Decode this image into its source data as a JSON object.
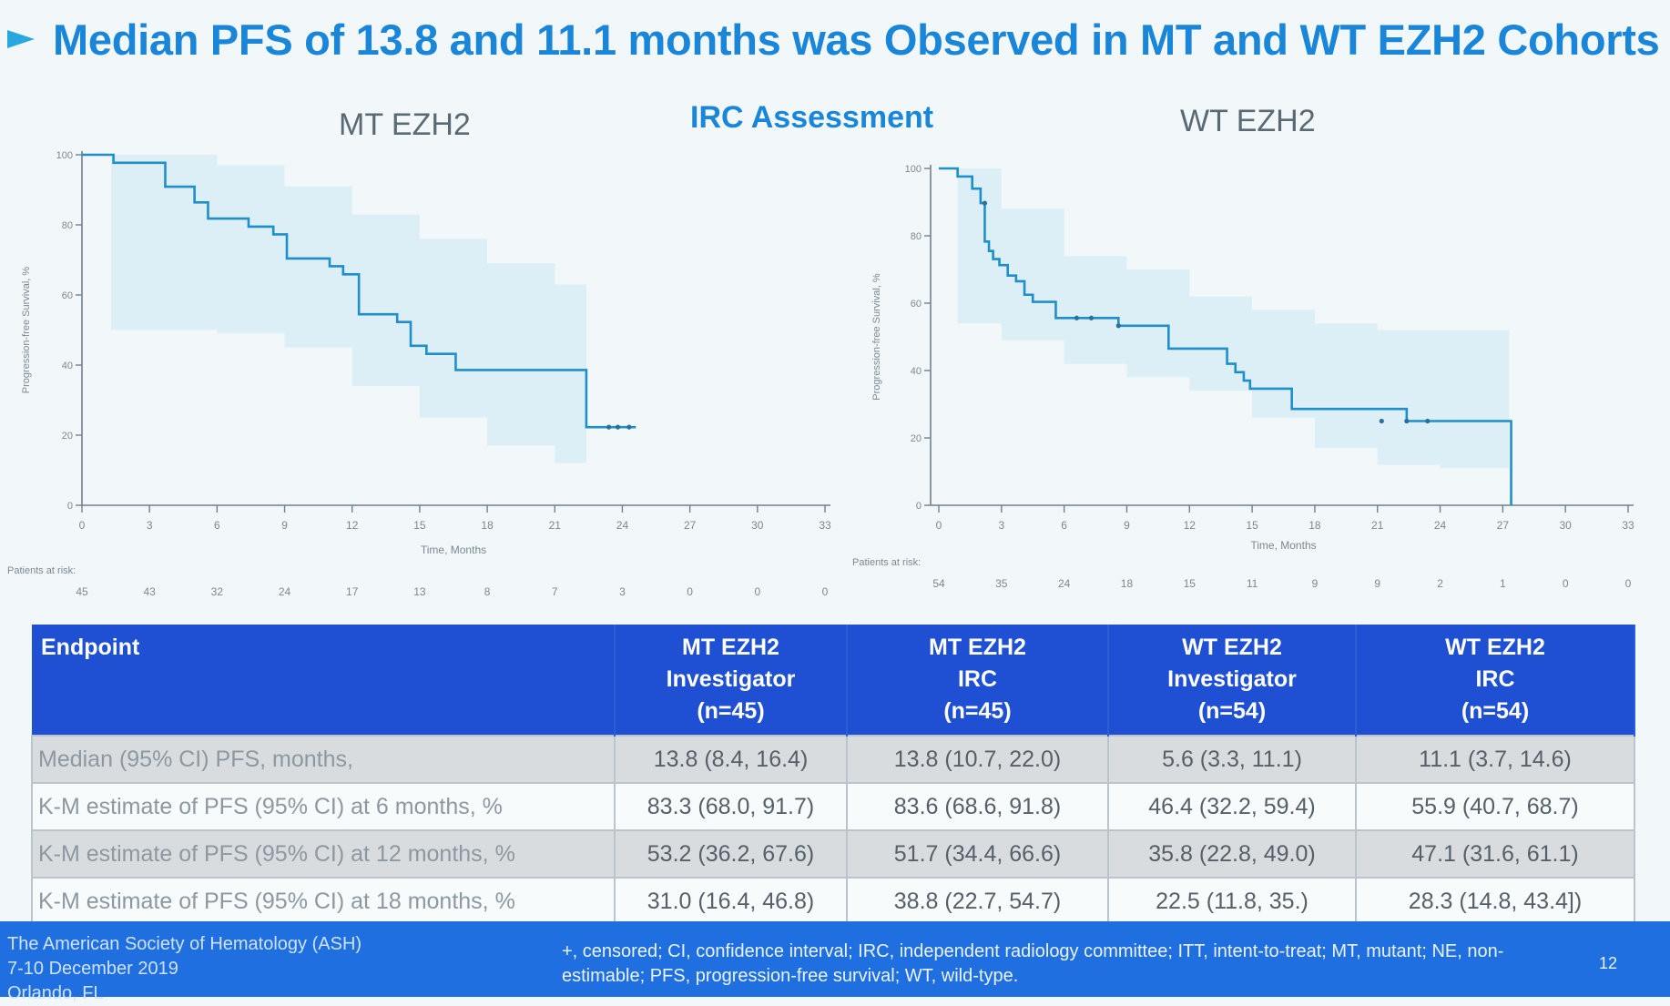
{
  "slide": {
    "title": "Median PFS of 13.8 and 11.1 months was Observed in MT and WT EZH2 Cohorts",
    "center_label": "IRC Assessment"
  },
  "colors": {
    "title": "#1a86d9",
    "curve": "#1e8fc8",
    "ci_band": "#dceff7",
    "table_header": "#1f50d4",
    "footer": "#1f6fe0"
  },
  "chart_data": [
    {
      "type": "line",
      "panel_title": "MT EZH2",
      "xlabel": "Time, Months",
      "ylabel": "Progression-free Survival, %",
      "xlim": [
        0,
        33
      ],
      "ylim": [
        0,
        100
      ],
      "x_ticks": [
        0,
        3,
        6,
        9,
        12,
        15,
        18,
        21,
        24,
        27,
        30,
        33
      ],
      "y_ticks": [
        0,
        20,
        40,
        60,
        80,
        100
      ],
      "grid": false,
      "risk_label": "Patients at risk:",
      "patients_at_risk": [
        45,
        43,
        32,
        24,
        17,
        13,
        8,
        7,
        3,
        0,
        0,
        0
      ],
      "km_curve": {
        "x": [
          0,
          1.4,
          3.7,
          5.0,
          5.6,
          7.4,
          8.5,
          9.1,
          11.0,
          11.6,
          12.3,
          14.0,
          14.6,
          15.3,
          16.6,
          19.5,
          22.4,
          22.4,
          24.6
        ],
        "y": [
          100,
          97.7,
          90.9,
          86.4,
          81.8,
          79.5,
          77.3,
          70.4,
          68.2,
          65.9,
          54.5,
          52.3,
          45.5,
          43.2,
          38.6,
          38.6,
          33.4,
          22.3,
          22.3
        ]
      },
      "ci_band": {
        "x": [
          1.3,
          4,
          6,
          9,
          12,
          15,
          18,
          21,
          22.4
        ],
        "upper": [
          100,
          100,
          97,
          91,
          83,
          76,
          69,
          63,
          58
        ],
        "lower": [
          50,
          50,
          49,
          45,
          34,
          25,
          17,
          12,
          10
        ]
      },
      "censored": [
        {
          "x": 23.4,
          "y": 22.3
        },
        {
          "x": 23.8,
          "y": 22.3
        },
        {
          "x": 24.3,
          "y": 22.3
        }
      ]
    },
    {
      "type": "line",
      "panel_title": "WT EZH2",
      "xlabel": "Time, Months",
      "ylabel": "Progression-free Survival, %",
      "xlim": [
        0,
        33
      ],
      "ylim": [
        0,
        100
      ],
      "x_ticks": [
        0,
        3,
        6,
        9,
        12,
        15,
        18,
        21,
        24,
        27,
        30,
        33
      ],
      "y_ticks": [
        0,
        20,
        40,
        60,
        80,
        100
      ],
      "grid": false,
      "risk_label": "Patients at risk:",
      "patients_at_risk": [
        54,
        35,
        24,
        18,
        15,
        11,
        9,
        9,
        2,
        1,
        0,
        0
      ],
      "km_curve": {
        "x": [
          0,
          0.9,
          1.6,
          2.0,
          2.2,
          2.4,
          2.6,
          2.9,
          3.3,
          3.7,
          4.1,
          4.5,
          4.9,
          5.6,
          6.0,
          8.6,
          11.0,
          13.8,
          14.2,
          14.6,
          14.9,
          15.4,
          16.9,
          18.0,
          21.0,
          22.4,
          23.2,
          23.8,
          27.3,
          27.4
        ],
        "y": [
          100,
          97.6,
          94.0,
          89.7,
          78.3,
          75.5,
          73.1,
          71.3,
          68.2,
          66.5,
          62.5,
          60.4,
          60.4,
          55.6,
          55.6,
          53.3,
          46.5,
          42.0,
          39.5,
          37.0,
          34.6,
          34.6,
          28.6,
          28.6,
          28.6,
          25.0,
          25.0,
          25.0,
          25.0,
          0
        ]
      },
      "ci_band": {
        "x": [
          0.9,
          3,
          6,
          9,
          12,
          15,
          18,
          21,
          24,
          27.3
        ],
        "upper": [
          100,
          88,
          74,
          70,
          62,
          58,
          54,
          52,
          52,
          52
        ],
        "lower": [
          54,
          49,
          42,
          38,
          34,
          26,
          17,
          12,
          11,
          10
        ]
      },
      "censored": [
        {
          "x": 2.2,
          "y": 89.7
        },
        {
          "x": 6.6,
          "y": 55.6
        },
        {
          "x": 7.3,
          "y": 55.6
        },
        {
          "x": 8.6,
          "y": 53.3
        },
        {
          "x": 21.2,
          "y": 25.0
        },
        {
          "x": 22.4,
          "y": 25.0
        },
        {
          "x": 23.4,
          "y": 25.0
        }
      ]
    }
  ],
  "table": {
    "header": {
      "endpoint": "Endpoint",
      "columns": [
        {
          "l1": "MT EZH2",
          "l2": "Investigator",
          "l3": "(n=45)"
        },
        {
          "l1": "MT EZH2",
          "l2": "IRC",
          "l3": "(n=45)"
        },
        {
          "l1": "WT EZH2",
          "l2": "Investigator",
          "l3": "(n=54)"
        },
        {
          "l1": "WT EZH2",
          "l2": "IRC",
          "l3": "(n=54)"
        }
      ]
    },
    "rows": [
      {
        "label": "Median (95% CI) PFS, months,",
        "v1": "13.8 (8.4, 16.4)",
        "v2": "13.8 (10.7, 22.0)",
        "v3": "5.6 (3.3, 11.1)",
        "v4": "11.1 (3.7, 14.6)"
      },
      {
        "label": "K-M estimate of PFS (95% CI) at 6 months, %",
        "v1": "83.3 (68.0, 91.7)",
        "v2": "83.6 (68.6, 91.8)",
        "v3": "46.4 (32.2, 59.4)",
        "v4": "55.9 (40.7, 68.7)"
      },
      {
        "label": "K-M estimate of PFS (95% CI) at 12 months, %",
        "v1": "53.2 (36.2, 67.6)",
        "v2": "51.7 (34.4, 66.6)",
        "v3": "35.8 (22.8, 49.0)",
        "v4": "47.1 (31.6, 61.1)"
      },
      {
        "label": "K-M estimate of PFS (95% CI) at 18 months, %",
        "v1": "31.0 (16.4, 46.8)",
        "v2": "38.8 (22.7, 54.7)",
        "v3": "22.5 (11.8, 35.)",
        "v4": "28.3 (14.8, 43.4])"
      }
    ]
  },
  "footer": {
    "society_line1": "The American Society of Hematology (ASH)",
    "society_line2": "7-10 December 2019",
    "society_line3": "Orlando, FL",
    "abbreviations": "+, censored; CI, confidence interval; IRC, independent radiology committee; ITT, intent-to-treat; MT, mutant; NE, non-estimable; PFS, progression-free survival; WT, wild-type.",
    "page_number": "12"
  }
}
